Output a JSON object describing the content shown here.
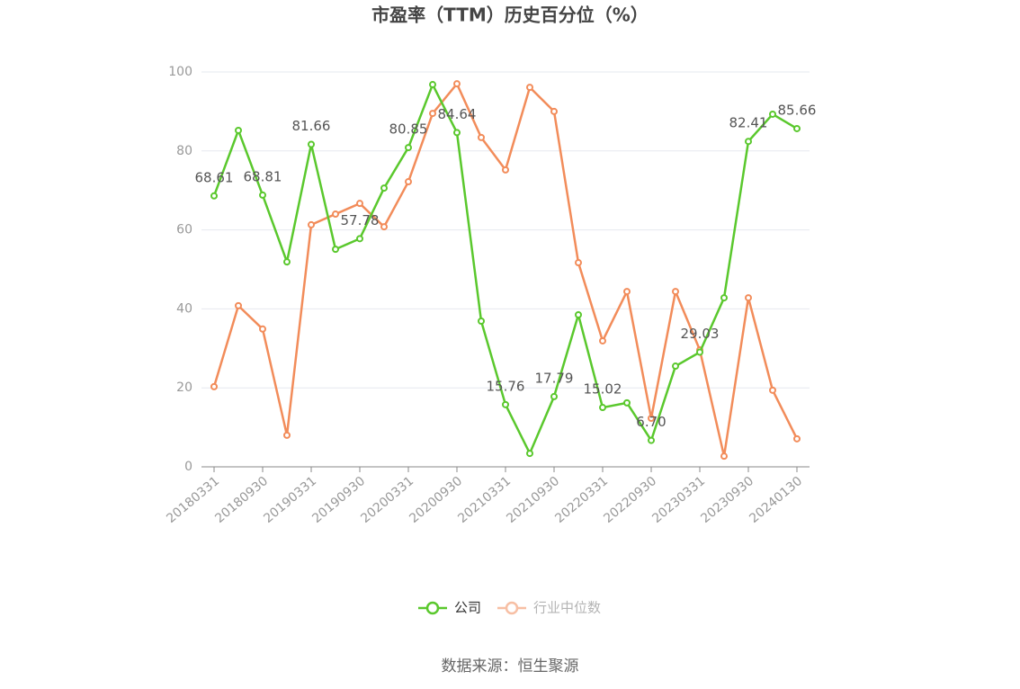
{
  "chart_data": {
    "type": "line",
    "title": "市盈率（TTM）历史百分位（%）",
    "categories": [
      "20180331",
      null,
      "20180930",
      null,
      "20190331",
      null,
      "20190930",
      null,
      "20200331",
      null,
      "20200930",
      null,
      "20210331",
      null,
      "20210930",
      null,
      "20220331",
      null,
      "20220930",
      null,
      "20230331",
      null,
      "20230930",
      null,
      "20240130"
    ],
    "series": [
      {
        "name": "公司",
        "color": "#5ac82d",
        "values": [
          68.61,
          85.2,
          68.81,
          51.9,
          81.66,
          55.1,
          57.78,
          70.6,
          80.85,
          96.8,
          84.64,
          36.9,
          15.76,
          3.4,
          17.79,
          38.5,
          15.02,
          16.2,
          6.7,
          25.5,
          29.03,
          42.8,
          82.41,
          89.3,
          85.66
        ],
        "value_labels": [
          "68.61",
          null,
          "68.81",
          null,
          "81.66",
          null,
          "57.78",
          null,
          "80.85",
          null,
          "84.64",
          null,
          "15.76",
          null,
          "17.79",
          null,
          "15.02",
          null,
          "6.70",
          null,
          "29.03",
          null,
          "82.41",
          null,
          "85.66"
        ]
      },
      {
        "name": "行业中位数",
        "color": "#f28c5a",
        "values": [
          20.3,
          40.8,
          34.9,
          8.0,
          61.3,
          64.0,
          66.7,
          60.8,
          72.2,
          89.5,
          97.0,
          83.4,
          75.2,
          96.1,
          90.0,
          51.7,
          31.9,
          44.4,
          12.3,
          44.4,
          29.6,
          2.7,
          42.8,
          19.4,
          7.1
        ]
      }
    ],
    "ylim": [
      0,
      100
    ],
    "yticks": [
      0,
      20,
      40,
      60,
      80,
      100
    ],
    "grid": true,
    "source": "数据来源：恒生聚源"
  }
}
